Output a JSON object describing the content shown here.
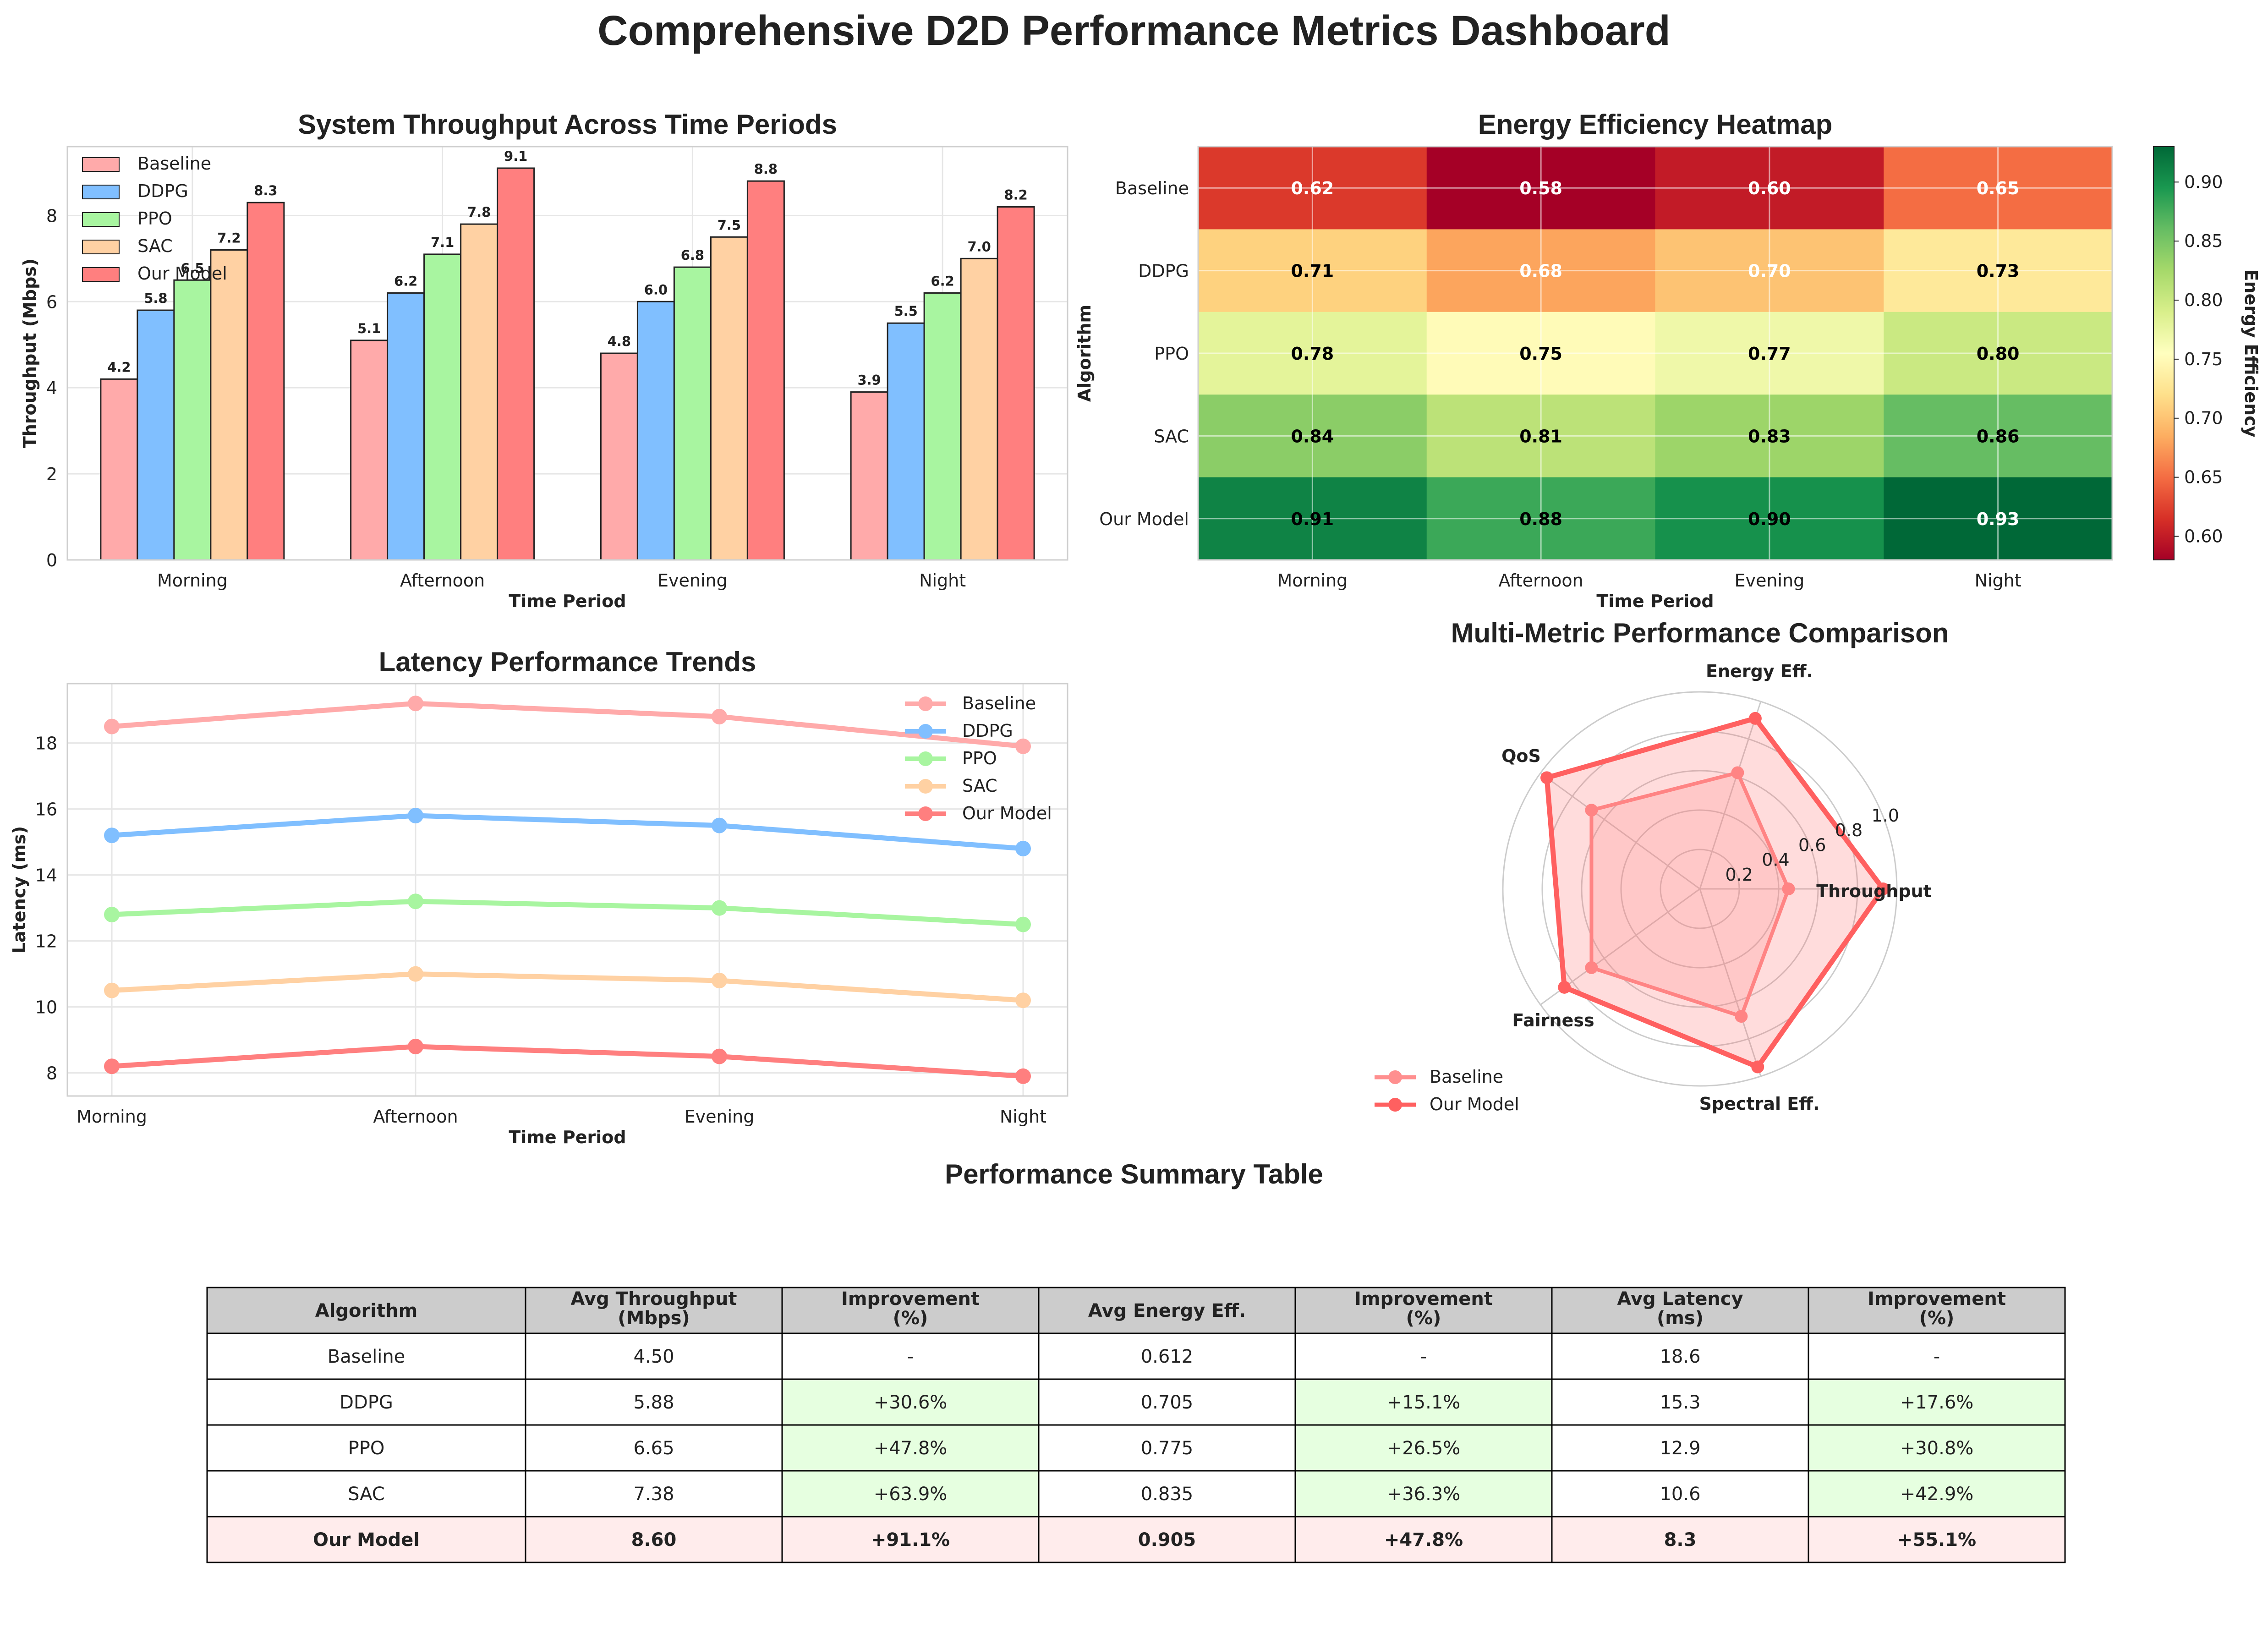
{
  "page": {
    "title": "Comprehensive D2D Performance Metrics Dashboard"
  },
  "colors": {
    "Baseline": "#ffaaaa",
    "DDPG": "#80bfff",
    "PPO": "#a8f5a0",
    "SAC": "#ffd1a3",
    "Our Model": "#ff7f7f",
    "radar_baseline": "#ff8f8f",
    "radar_model": "#ff6060",
    "grid": "#e6e6e6",
    "table_header": "#cccccc",
    "table_improve": "#e6ffe0",
    "table_model": "#ffecec"
  },
  "chart_data": [
    {
      "type": "bar",
      "title": "System Throughput Across Time Periods",
      "xlabel": "Time Period",
      "ylabel": "Throughput (Mbps)",
      "ylim": [
        0,
        9.6
      ],
      "yticks": [
        0,
        2,
        4,
        6,
        8
      ],
      "categories": [
        "Morning",
        "Afternoon",
        "Evening",
        "Night"
      ],
      "series": [
        {
          "name": "Baseline",
          "values": [
            4.2,
            5.1,
            4.8,
            3.9
          ]
        },
        {
          "name": "DDPG",
          "values": [
            5.8,
            6.2,
            6.0,
            5.5
          ]
        },
        {
          "name": "PPO",
          "values": [
            6.5,
            7.1,
            6.8,
            6.2
          ]
        },
        {
          "name": "SAC",
          "values": [
            7.2,
            7.8,
            7.5,
            7.0
          ]
        },
        {
          "name": "Our Model",
          "values": [
            8.3,
            9.1,
            8.8,
            8.2
          ]
        }
      ],
      "legend": "top-left",
      "grid": true
    },
    {
      "type": "heatmap",
      "title": "Energy Efficiency Heatmap",
      "xlabel": "Time Period",
      "ylabel": "Algorithm",
      "colorbar_label": "Energy Efficiency",
      "colorbar_range": [
        0.58,
        0.93
      ],
      "colorbar_ticks": [
        "0.60",
        "0.65",
        "0.70",
        "0.75",
        "0.80",
        "0.85",
        "0.90"
      ],
      "x": [
        "Morning",
        "Afternoon",
        "Evening",
        "Night"
      ],
      "y": [
        "Baseline",
        "DDPG",
        "PPO",
        "SAC",
        "Our Model"
      ],
      "values": [
        [
          0.62,
          0.58,
          0.6,
          0.65
        ],
        [
          0.71,
          0.68,
          0.7,
          0.73
        ],
        [
          0.78,
          0.75,
          0.77,
          0.8
        ],
        [
          0.84,
          0.81,
          0.83,
          0.86
        ],
        [
          0.91,
          0.88,
          0.9,
          0.93
        ]
      ],
      "colormap": "RdYlGn"
    },
    {
      "type": "line",
      "title": "Latency Performance Trends",
      "xlabel": "Time Period",
      "ylabel": "Latency (ms)",
      "ylim": [
        7.3,
        19.8
      ],
      "yticks": [
        8,
        10,
        12,
        14,
        16,
        18
      ],
      "categories": [
        "Morning",
        "Afternoon",
        "Evening",
        "Night"
      ],
      "series": [
        {
          "name": "Baseline",
          "values": [
            18.5,
            19.2,
            18.8,
            17.9
          ]
        },
        {
          "name": "DDPG",
          "values": [
            15.2,
            15.8,
            15.5,
            14.8
          ]
        },
        {
          "name": "PPO",
          "values": [
            12.8,
            13.2,
            13.0,
            12.5
          ]
        },
        {
          "name": "SAC",
          "values": [
            10.5,
            11.0,
            10.8,
            10.2
          ]
        },
        {
          "name": "Our Model",
          "values": [
            8.2,
            8.8,
            8.5,
            7.9
          ]
        }
      ],
      "legend": "top-right",
      "grid": true
    },
    {
      "type": "radar",
      "title": "Multi-Metric Performance Comparison",
      "axes": [
        "Throughput",
        "Energy Eff.",
        "QoS",
        "Fairness",
        "Spectral Eff."
      ],
      "rlim": [
        0,
        1.0
      ],
      "rticks": [
        "0.2",
        "0.4",
        "0.6",
        "0.8",
        "1.0"
      ],
      "series": [
        {
          "name": "Baseline",
          "values": [
            0.45,
            0.62,
            0.68,
            0.68,
            0.68
          ]
        },
        {
          "name": "Our Model",
          "values": [
            0.93,
            0.91,
            0.96,
            0.85,
            0.95
          ]
        }
      ],
      "legend": "bottom-left"
    },
    {
      "type": "table",
      "title": "Performance Summary Table",
      "columns": [
        "Algorithm",
        "Avg Throughput\n(Mbps)",
        "Improvement\n(%)",
        "Avg Energy Eff.",
        "Improvement\n(%)",
        "Avg Latency\n(ms)",
        "Improvement\n(%)"
      ],
      "rows": [
        [
          "Baseline",
          "4.50",
          "-",
          "0.612",
          "-",
          "18.6",
          "-"
        ],
        [
          "DDPG",
          "5.88",
          "+30.6%",
          "0.705",
          "+15.1%",
          "15.3",
          "+17.6%"
        ],
        [
          "PPO",
          "6.65",
          "+47.8%",
          "0.775",
          "+26.5%",
          "12.9",
          "+30.8%"
        ],
        [
          "SAC",
          "7.38",
          "+63.9%",
          "0.835",
          "+36.3%",
          "10.6",
          "+42.9%"
        ],
        [
          "Our Model",
          "8.60",
          "+91.1%",
          "0.905",
          "+47.8%",
          "8.3",
          "+55.1%"
        ]
      ]
    }
  ]
}
